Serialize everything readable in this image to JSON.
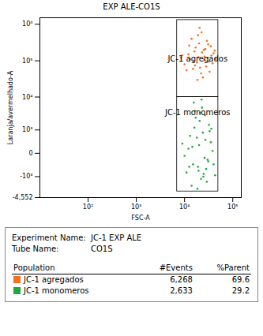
{
  "chart_data": {
    "type": "scatter",
    "title": "EXP ALE-CO1S",
    "x_label": "FSC-A",
    "y_label": "Laranja/avermelhado-A",
    "log": true,
    "grid": false,
    "xlim": [
      10,
      150000
    ],
    "xticks": [
      {
        "value": 100,
        "label": "10²"
      },
      {
        "value": 1000,
        "label": "10³"
      },
      {
        "value": 10000,
        "label": "10⁴"
      },
      {
        "value": 100000,
        "label": "10⁵"
      }
    ],
    "ylim": [
      -4552,
      1500000
    ],
    "yticks": [
      {
        "value": -4552,
        "label": "-4,552"
      },
      {
        "value": -1000,
        "label": "-10³"
      },
      0,
      {
        "value": 1000,
        "label": "10³"
      },
      {
        "value": 10000,
        "label": "10⁴"
      },
      {
        "value": 100000,
        "label": "10⁵"
      },
      {
        "value": 1000000,
        "label": "10⁶"
      }
    ],
    "series": [
      {
        "name": "JC-1 agregados",
        "color": "#f37021",
        "marker": "dot",
        "gate": {
          "x": [
            7000,
            50000
          ],
          "y": [
            10000,
            1300000
          ]
        },
        "x": [
          12000,
          18000,
          25000,
          15000,
          30000,
          20000,
          10000,
          22000,
          35000,
          16000,
          28000,
          13000,
          40000,
          19000,
          24000,
          9000,
          32000,
          17000,
          26000,
          21000,
          14000,
          38000,
          11000,
          29000,
          23000,
          33000,
          15500,
          27000,
          18500,
          42000,
          20500,
          12500,
          36000,
          16500,
          31000,
          25500,
          8500,
          44000,
          22500,
          19500
        ],
        "y": [
          150000,
          90000,
          200000,
          60000,
          120000,
          300000,
          80000,
          45000,
          250000,
          180000,
          70000,
          110000,
          160000,
          500000,
          35000,
          140000,
          95000,
          230000,
          130000,
          65000,
          400000,
          85000,
          55000,
          350000,
          170000,
          50000,
          100000,
          210000,
          30000,
          190000,
          800000,
          260000,
          140000,
          75000,
          280000,
          105000,
          120000,
          110000,
          600000,
          125000
        ]
      },
      {
        "name": "JC-1 monomeros",
        "color": "#22a83a",
        "marker": "dot",
        "gate": {
          "x": [
            7000,
            50000
          ],
          "y": [
            -3000,
            10000
          ]
        },
        "x": [
          15000,
          20000,
          25000,
          12000,
          30000,
          18000,
          22000,
          16000,
          28000,
          10000,
          35000,
          14000,
          24000,
          19000,
          32000,
          17000,
          26000,
          13000,
          21000,
          29000,
          23000,
          11000,
          38000,
          15500,
          27000,
          18500,
          40000,
          20500,
          33000,
          9000,
          24500,
          16500,
          31000,
          22500,
          12500,
          36000,
          19500,
          26500,
          14500,
          43000
        ],
        "y": [
          -300,
          200,
          -800,
          100,
          -150,
          500,
          -1200,
          1200,
          -500,
          -50,
          300,
          -2000,
          800,
          -400,
          1500,
          2500,
          -100,
          600,
          3500,
          -1500,
          5000,
          -700,
          50,
          7000,
          400,
          -2500,
          -300,
          2000,
          900,
          250,
          -1000,
          4000,
          -200,
          8500,
          -400,
          1100,
          -600,
          3000,
          150,
          -900
        ]
      }
    ]
  },
  "panel": {
    "info": [
      {
        "key": "Experiment Name:",
        "value": "JC-1 EXP ALE"
      },
      {
        "key": "Tube Name:",
        "value": "CO1S"
      }
    ],
    "table": {
      "header": [
        "Population",
        "#Events",
        "%Parent"
      ],
      "rows": [
        {
          "population": "JC-1 agregados",
          "color": "#f37021",
          "events": "6,268",
          "percent_parent": 69.6
        },
        {
          "population": "JC-1 monomeros",
          "color": "#22a83a",
          "events": "2,633",
          "percent_parent": 29.2
        }
      ]
    }
  }
}
